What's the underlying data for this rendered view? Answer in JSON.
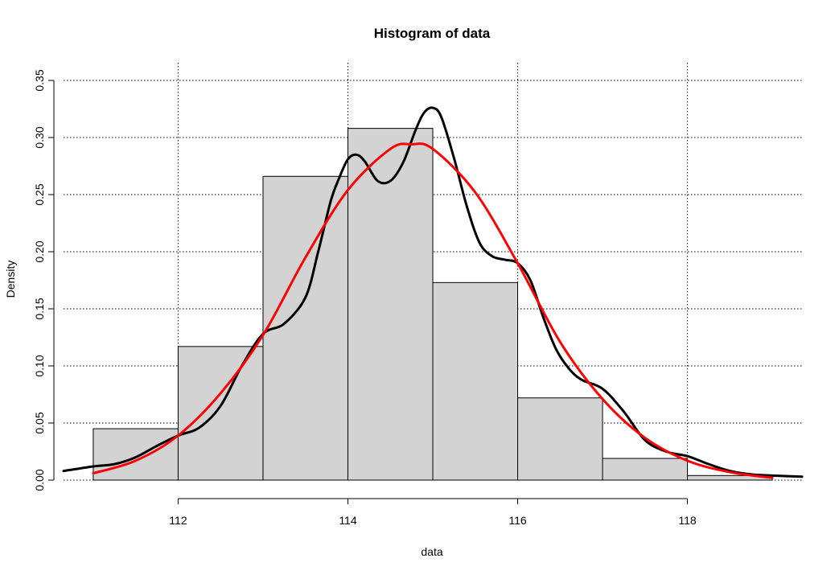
{
  "chart_data": {
    "type": "bar",
    "title": "Histogram of data",
    "xlabel": "data",
    "ylabel": "Density",
    "xlim": [
      110.65,
      119.35
    ],
    "ylim": [
      0,
      0.35
    ],
    "x_ticks": [
      112,
      114,
      116,
      118
    ],
    "x_tick_labels": [
      "112",
      "114",
      "116",
      "118"
    ],
    "y_ticks": [
      0,
      0.05,
      0.1,
      0.15,
      0.2,
      0.25,
      0.3,
      0.35
    ],
    "y_tick_labels": [
      "0.00",
      "0.05",
      "0.10",
      "0.15",
      "0.20",
      "0.25",
      "0.30",
      "0.35"
    ],
    "grid": true,
    "bins": [
      {
        "x0": 111,
        "x1": 112,
        "density": 0.045
      },
      {
        "x0": 112,
        "x1": 113,
        "density": 0.117
      },
      {
        "x0": 113,
        "x1": 114,
        "density": 0.266
      },
      {
        "x0": 114,
        "x1": 115,
        "density": 0.308
      },
      {
        "x0": 115,
        "x1": 116,
        "density": 0.173
      },
      {
        "x0": 116,
        "x1": 117,
        "density": 0.072
      },
      {
        "x0": 117,
        "x1": 118,
        "density": 0.019
      },
      {
        "x0": 118,
        "x1": 119,
        "density": 0.004
      }
    ],
    "series": [
      {
        "color": "#000000",
        "x": [
          110.65,
          111.0,
          111.25,
          111.5,
          111.75,
          112.0,
          112.25,
          112.5,
          112.75,
          113.0,
          113.25,
          113.5,
          113.65,
          113.8,
          113.9,
          114.0,
          114.1,
          114.2,
          114.35,
          114.5,
          114.65,
          114.8,
          114.9,
          115.0,
          115.1,
          115.25,
          115.4,
          115.55,
          115.7,
          115.85,
          116.0,
          116.15,
          116.3,
          116.45,
          116.6,
          116.75,
          117.0,
          117.25,
          117.5,
          117.75,
          118.0,
          118.25,
          118.5,
          118.75,
          119.0,
          119.35
        ],
        "y": [
          0.008,
          0.012,
          0.014,
          0.02,
          0.03,
          0.039,
          0.046,
          0.065,
          0.1,
          0.128,
          0.137,
          0.16,
          0.2,
          0.245,
          0.265,
          0.281,
          0.285,
          0.279,
          0.262,
          0.262,
          0.278,
          0.307,
          0.322,
          0.326,
          0.318,
          0.282,
          0.24,
          0.208,
          0.196,
          0.193,
          0.19,
          0.175,
          0.143,
          0.115,
          0.098,
          0.088,
          0.08,
          0.06,
          0.035,
          0.025,
          0.021,
          0.014,
          0.008,
          0.005,
          0.004,
          0.003
        ]
      },
      {
        "color": "#ff0000",
        "x": [
          111.0,
          111.5,
          112.0,
          112.5,
          113.0,
          113.5,
          114.0,
          114.5,
          114.75,
          115.0,
          115.5,
          116.0,
          116.5,
          117.0,
          117.5,
          118.0,
          118.5,
          119.0
        ],
        "y": [
          0.006,
          0.017,
          0.039,
          0.076,
          0.127,
          0.195,
          0.254,
          0.29,
          0.294,
          0.29,
          0.252,
          0.19,
          0.121,
          0.071,
          0.037,
          0.017,
          0.007,
          0.002
        ]
      }
    ]
  }
}
